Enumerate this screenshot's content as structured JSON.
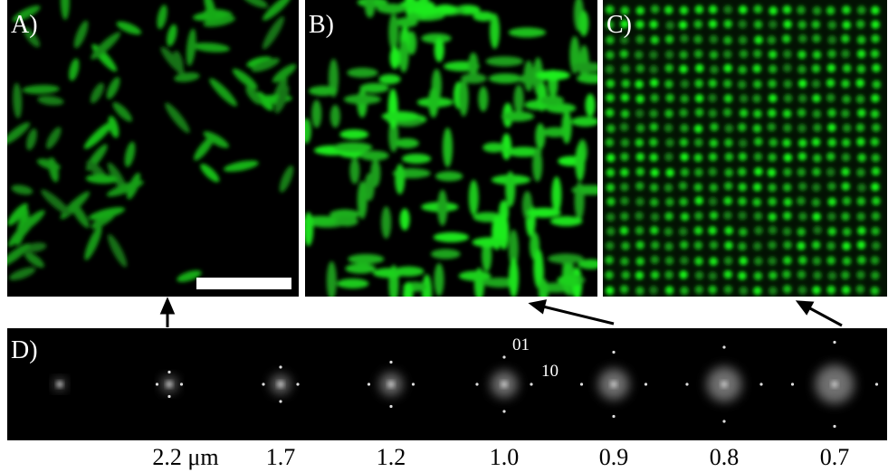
{
  "panels": [
    {
      "label": "A)"
    },
    {
      "label": "B)"
    },
    {
      "label": "C)"
    }
  ],
  "fft": {
    "label": "D)",
    "index_labels": [
      "01",
      "10"
    ],
    "spacings": [
      "2.2 μm",
      "1.7",
      "1.2",
      "1.0",
      "0.9",
      "0.8",
      "0.7"
    ]
  }
}
